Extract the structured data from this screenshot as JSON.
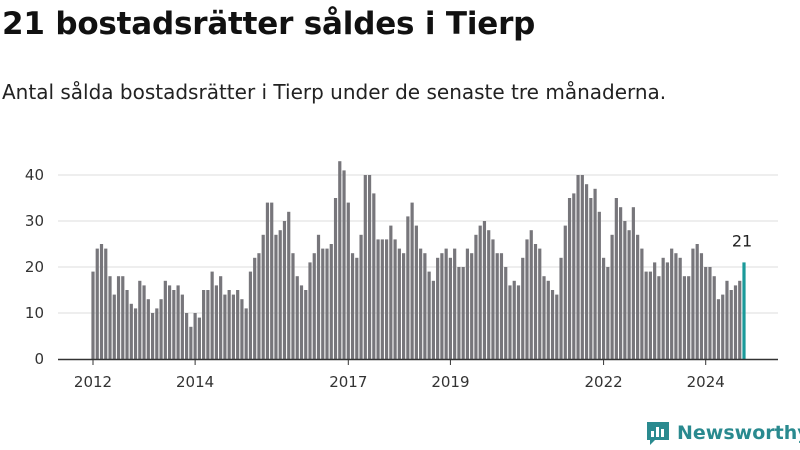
{
  "header": {
    "title": "21 bostadsrätter såldes i Tierp",
    "subtitle": "Antal sålda bostadsrätter i Tierp under de senaste tre månaderna."
  },
  "brand": {
    "name": "Newsworthy"
  },
  "colors": {
    "bar": "#77767b",
    "highlight": "#1b9a9a",
    "grid": "#dddddd",
    "axis": "#333333",
    "brand": "#2a8a8f"
  },
  "chart_data": {
    "type": "bar",
    "title": "21 bostadsrätter såldes i Tierp",
    "subtitle": "Antal sålda bostadsrätter i Tierp under de senaste tre månaderna.",
    "xlabel": "",
    "ylabel": "",
    "ylim": [
      0,
      45
    ],
    "yticks": [
      0,
      10,
      20,
      30,
      40
    ],
    "grid": true,
    "x_start": "2012-01",
    "x_ticks": [
      {
        "label": "2012",
        "index": 0
      },
      {
        "label": "2014",
        "index": 24
      },
      {
        "label": "2017",
        "index": 60
      },
      {
        "label": "2019",
        "index": 84
      },
      {
        "label": "2022",
        "index": 120
      },
      {
        "label": "2024",
        "index": 144
      }
    ],
    "values": [
      19,
      24,
      25,
      24,
      18,
      14,
      18,
      18,
      15,
      12,
      11,
      17,
      16,
      13,
      10,
      11,
      13,
      17,
      16,
      15,
      16,
      14,
      10,
      7,
      10,
      9,
      15,
      15,
      19,
      16,
      18,
      14,
      15,
      14,
      15,
      13,
      11,
      19,
      22,
      23,
      27,
      34,
      34,
      27,
      28,
      30,
      32,
      23,
      18,
      16,
      15,
      21,
      23,
      27,
      24,
      24,
      25,
      35,
      43,
      41,
      34,
      23,
      22,
      27,
      40,
      40,
      36,
      26,
      26,
      26,
      29,
      26,
      24,
      23,
      31,
      34,
      29,
      24,
      23,
      19,
      17,
      22,
      23,
      24,
      22,
      24,
      20,
      20,
      24,
      23,
      27,
      29,
      30,
      28,
      26,
      23,
      23,
      20,
      16,
      17,
      16,
      22,
      26,
      28,
      25,
      24,
      18,
      17,
      15,
      14,
      22,
      29,
      35,
      36,
      40,
      40,
      38,
      35,
      37,
      32,
      22,
      20,
      27,
      35,
      33,
      30,
      28,
      33,
      27,
      24,
      19,
      19,
      21,
      18,
      22,
      21,
      24,
      23,
      22,
      18,
      18,
      24,
      25,
      23,
      20,
      20,
      18,
      13,
      14,
      17,
      15,
      16,
      17,
      21
    ],
    "highlight_index": 153,
    "highlight_label": "21",
    "series": [
      {
        "name": "Antal sålda bostadsrätter",
        "values_ref": "values"
      }
    ]
  }
}
